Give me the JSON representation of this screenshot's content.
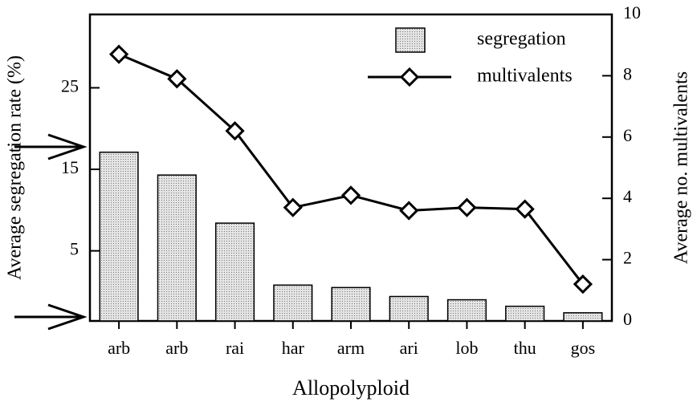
{
  "chart_data": {
    "type": "bar-line",
    "x_label": "Allopolyploid",
    "y_label": "Average segregation rate (%)",
    "y2_label": "Average no. multivalents",
    "categories": [
      "arb",
      "arb",
      "rai",
      "har",
      "arm",
      "ari",
      "lob",
      "thu",
      "gos"
    ],
    "series": [
      {
        "name": "segregation",
        "type": "bar",
        "color": "#c8c8c8",
        "values": [
          17.1,
          14.3,
          8.4,
          0.8,
          0.5,
          -0.6,
          -1.0,
          -1.8,
          -2.6
        ]
      },
      {
        "name": "multivalents",
        "type": "line",
        "axis": "y2",
        "color": "#000000",
        "values": [
          8.7,
          7.9,
          6.2,
          3.7,
          4.1,
          3.6,
          3.7,
          3.65,
          1.2
        ]
      }
    ],
    "ylim": [
      -3.6,
      34
    ],
    "yticks": [
      5,
      15,
      25
    ],
    "y2lim": [
      0,
      10
    ],
    "y2ticks": [
      0,
      2,
      4,
      6,
      8,
      10
    ],
    "legend": "upper right"
  }
}
